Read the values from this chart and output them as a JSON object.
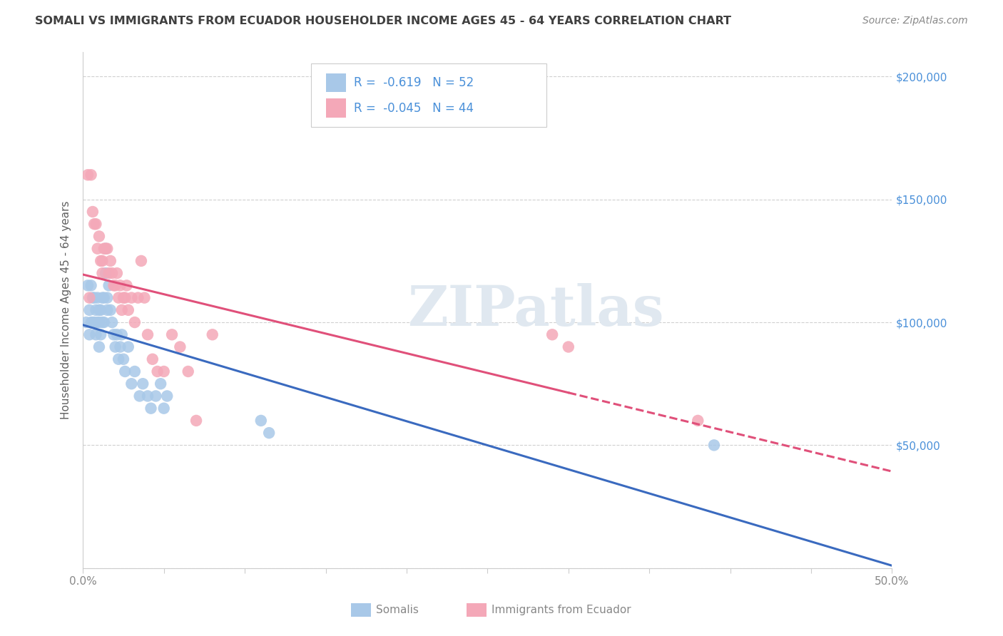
{
  "title": "SOMALI VS IMMIGRANTS FROM ECUADOR HOUSEHOLDER INCOME AGES 45 - 64 YEARS CORRELATION CHART",
  "source": "Source: ZipAtlas.com",
  "ylabel": "Householder Income Ages 45 - 64 years",
  "xlim": [
    0.0,
    0.5
  ],
  "ylim": [
    0,
    210000
  ],
  "xticks": [
    0.0,
    0.05,
    0.1,
    0.15,
    0.2,
    0.25,
    0.3,
    0.35,
    0.4,
    0.45,
    0.5
  ],
  "xticklabels": [
    "0.0%",
    "",
    "",
    "",
    "",
    "",
    "",
    "",
    "",
    "",
    "50.0%"
  ],
  "yticks": [
    0,
    50000,
    100000,
    150000,
    200000
  ],
  "yticklabels": [
    "",
    "$50,000",
    "$100,000",
    "$150,000",
    "$200,000"
  ],
  "legend_r_somali": "-0.619",
  "legend_n_somali": "52",
  "legend_r_ecuador": "-0.045",
  "legend_n_ecuador": "44",
  "somali_color": "#a8c8e8",
  "ecuador_color": "#f4a8b8",
  "somali_line_color": "#3a6abf",
  "ecuador_line_color": "#e0507a",
  "legend_text_color": "#4a90d9",
  "watermark": "ZIPatlas",
  "background_color": "#ffffff",
  "grid_color": "#d0d0d0",
  "title_color": "#404040",
  "source_color": "#888888",
  "ylabel_color": "#606060",
  "tick_color": "#888888",
  "somali_x": [
    0.002,
    0.003,
    0.004,
    0.004,
    0.005,
    0.005,
    0.006,
    0.006,
    0.007,
    0.007,
    0.008,
    0.008,
    0.009,
    0.009,
    0.01,
    0.01,
    0.01,
    0.011,
    0.011,
    0.012,
    0.012,
    0.013,
    0.013,
    0.014,
    0.014,
    0.015,
    0.015,
    0.016,
    0.017,
    0.018,
    0.019,
    0.02,
    0.021,
    0.022,
    0.023,
    0.024,
    0.025,
    0.026,
    0.028,
    0.03,
    0.032,
    0.035,
    0.037,
    0.04,
    0.042,
    0.045,
    0.048,
    0.05,
    0.052,
    0.11,
    0.115,
    0.39
  ],
  "somali_y": [
    100000,
    115000,
    105000,
    95000,
    115000,
    100000,
    110000,
    100000,
    110000,
    100000,
    105000,
    95000,
    110000,
    100000,
    105000,
    100000,
    90000,
    105000,
    95000,
    110000,
    100000,
    110000,
    100000,
    130000,
    120000,
    110000,
    105000,
    115000,
    105000,
    100000,
    95000,
    90000,
    95000,
    85000,
    90000,
    95000,
    85000,
    80000,
    90000,
    75000,
    80000,
    70000,
    75000,
    70000,
    65000,
    70000,
    75000,
    65000,
    70000,
    60000,
    55000,
    50000
  ],
  "ecuador_x": [
    0.003,
    0.004,
    0.005,
    0.006,
    0.007,
    0.008,
    0.009,
    0.01,
    0.011,
    0.012,
    0.012,
    0.013,
    0.014,
    0.015,
    0.016,
    0.017,
    0.018,
    0.019,
    0.02,
    0.021,
    0.022,
    0.023,
    0.024,
    0.025,
    0.026,
    0.027,
    0.028,
    0.03,
    0.032,
    0.034,
    0.036,
    0.038,
    0.04,
    0.043,
    0.046,
    0.05,
    0.055,
    0.06,
    0.065,
    0.07,
    0.08,
    0.29,
    0.3,
    0.38
  ],
  "ecuador_y": [
    160000,
    110000,
    160000,
    145000,
    140000,
    140000,
    130000,
    135000,
    125000,
    120000,
    125000,
    130000,
    130000,
    130000,
    120000,
    125000,
    120000,
    115000,
    115000,
    120000,
    110000,
    115000,
    105000,
    110000,
    110000,
    115000,
    105000,
    110000,
    100000,
    110000,
    125000,
    110000,
    95000,
    85000,
    80000,
    80000,
    95000,
    90000,
    80000,
    60000,
    95000,
    95000,
    90000,
    60000
  ]
}
